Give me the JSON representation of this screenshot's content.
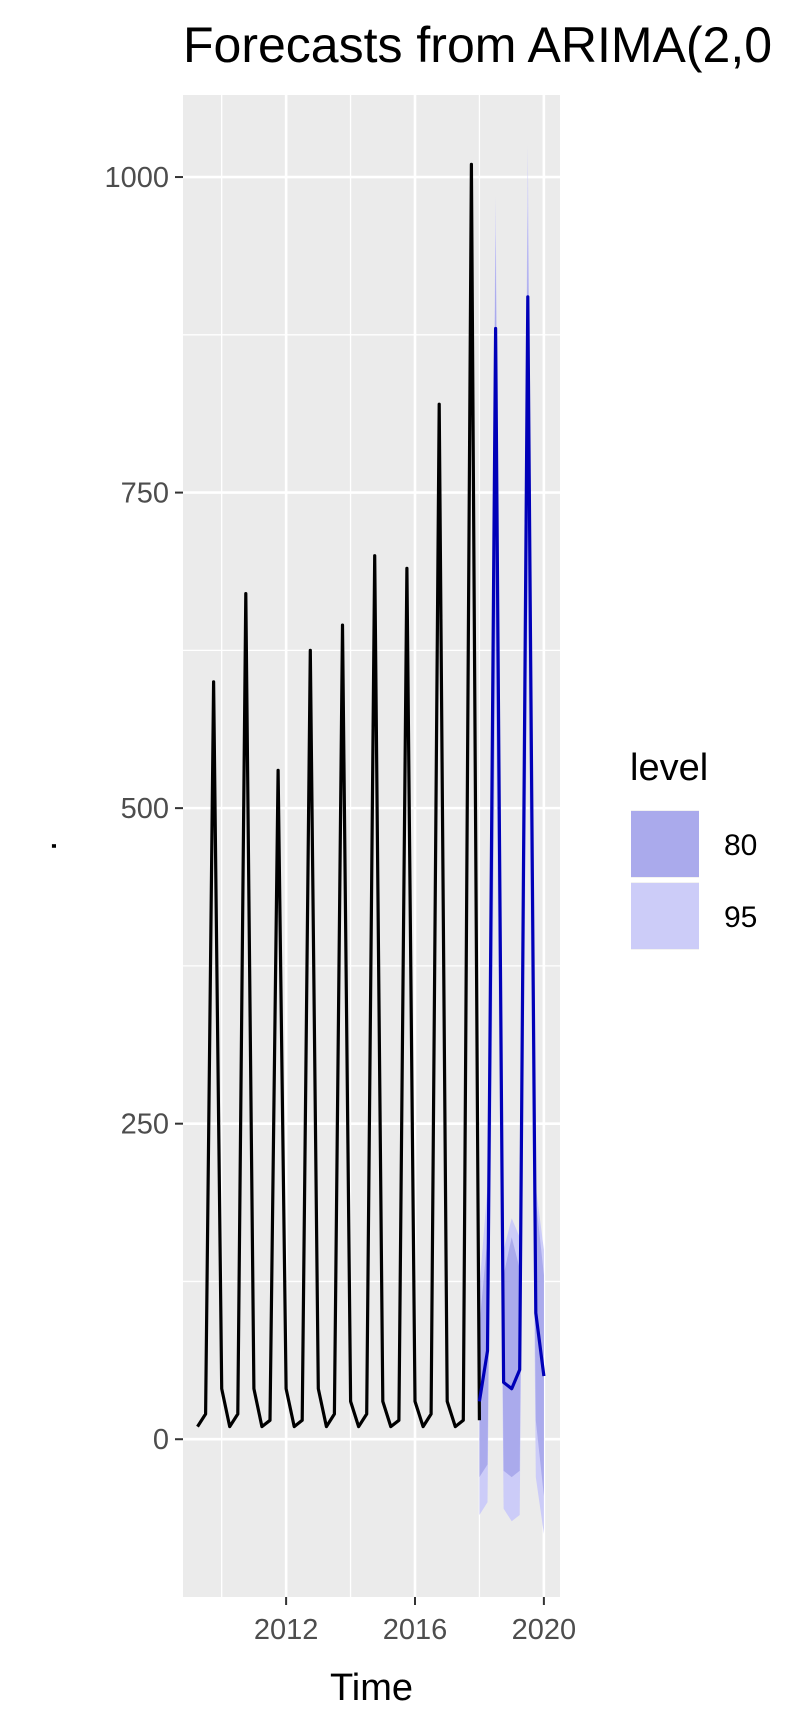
{
  "chart_data": {
    "type": "line",
    "title": "Forecasts from ARIMA(2,0",
    "xlabel": "Time",
    "ylabel": ".",
    "xlim": [
      2008.8,
      2020.5
    ],
    "ylim": [
      -125,
      1065
    ],
    "x_ticks": [
      2012,
      2016,
      2020
    ],
    "x_tick_labels": [
      "2012",
      "2016",
      "2020"
    ],
    "y_ticks": [
      0,
      250,
      500,
      750,
      1000
    ],
    "y_tick_labels": [
      "0",
      "250",
      "500",
      "750",
      "1000"
    ],
    "x_minor_ticks": [
      2010,
      2014,
      2018
    ],
    "y_minor_ticks": [
      125,
      375,
      625,
      875
    ],
    "grid": true,
    "legend_position": "right",
    "legend": {
      "title": "level",
      "items": [
        {
          "label": "80",
          "color": "#aaaaec"
        },
        {
          "label": "95",
          "color": "#ccccf8"
        }
      ]
    },
    "colors": {
      "panel": "#ebebeb",
      "grid": "#ffffff",
      "observed": "#000000",
      "forecast": "#0000b8",
      "band80": "#aaaaec",
      "band95": "#ccccf8"
    },
    "series": [
      {
        "name": "observed",
        "x": [
          2009.25,
          2009.5,
          2009.75,
          2010.0,
          2010.25,
          2010.5,
          2010.75,
          2011.0,
          2011.25,
          2011.5,
          2011.75,
          2012.0,
          2012.25,
          2012.5,
          2012.75,
          2013.0,
          2013.25,
          2013.5,
          2013.75,
          2014.0,
          2014.25,
          2014.5,
          2014.75,
          2015.0,
          2015.25,
          2015.5,
          2015.75,
          2016.0,
          2016.25,
          2016.5,
          2016.75,
          2017.0,
          2017.25,
          2017.5,
          2017.75,
          2018.0
        ],
        "y": [
          10,
          20,
          600,
          40,
          10,
          20,
          670,
          40,
          10,
          15,
          530,
          40,
          10,
          15,
          625,
          40,
          10,
          20,
          645,
          30,
          10,
          20,
          700,
          30,
          10,
          15,
          690,
          30,
          10,
          20,
          820,
          30,
          10,
          15,
          1010,
          15
        ]
      },
      {
        "name": "forecast",
        "x": [
          2018.0,
          2018.25,
          2018.5,
          2018.75,
          2019.0,
          2019.25,
          2019.5,
          2019.75,
          2020.0
        ],
        "y": [
          30,
          70,
          880,
          45,
          40,
          55,
          905,
          100,
          50
        ],
        "lo80": [
          -30,
          -20,
          660,
          -25,
          -30,
          -25,
          720,
          15,
          -45
        ],
        "hi80": [
          90,
          160,
          955,
          130,
          160,
          135,
          975,
          190,
          130
        ],
        "lo95": [
          -60,
          -50,
          600,
          -55,
          -65,
          -60,
          660,
          -30,
          -75
        ],
        "hi95": [
          120,
          200,
          985,
          150,
          175,
          160,
          1025,
          200,
          150
        ]
      }
    ]
  }
}
